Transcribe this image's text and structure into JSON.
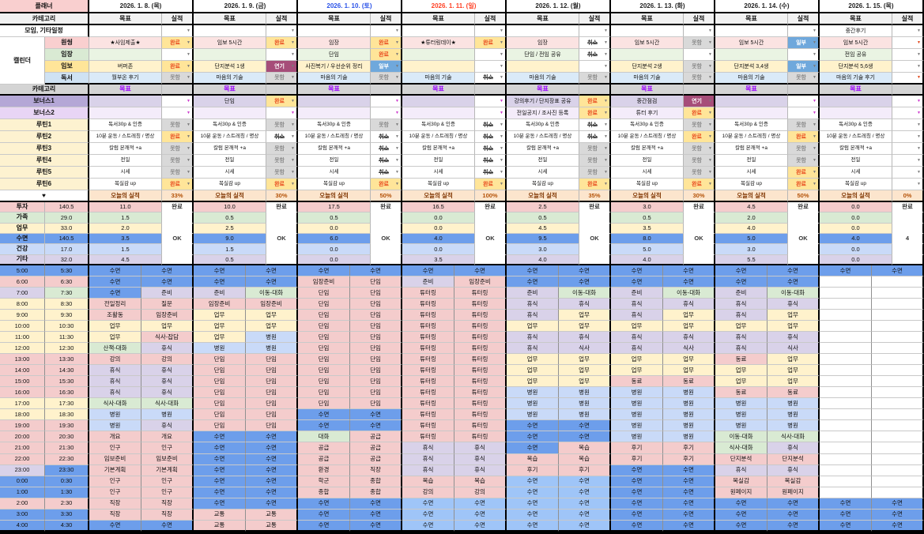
{
  "sheet": {
    "title": "플래너",
    "category_label": "카테고리",
    "goal_label": "목표",
    "result_label": "실적",
    "meeting_label": "모임, 기타일정",
    "calendar_label": "캘린더",
    "calendar_subrows": [
      "원씽",
      "임장",
      "임보",
      "독서"
    ],
    "category2_label": "카테고리",
    "goal2_label": "목표",
    "bonus_labels": [
      "보너스1",
      "보너스2"
    ],
    "routine_labels": [
      "루틴1",
      "루틴2",
      "루틴3",
      "루틴4",
      "루틴5",
      "루틴6"
    ],
    "routine_goals": [
      "독서30p & 인증",
      "10분 운동 / 스트레칭 / 명상",
      "칼럼 본깨적 +a",
      "전일",
      "시세",
      "복실감 up"
    ],
    "heart": "♥",
    "today_label": "오늘의 실적"
  },
  "status_text": {
    "done": "완료",
    "not": "못함",
    "part": "일부",
    "delay": "연기",
    "cancel": "취소"
  },
  "summary": {
    "labels": [
      "투자",
      "가족",
      "업무",
      "수면",
      "건강",
      "기타"
    ],
    "totals": [
      "140.5",
      "29.0",
      "33.0",
      "140.5",
      "17.0",
      "32.0"
    ],
    "row_colors": [
      "P",
      "G",
      "Y",
      "S",
      "H",
      "L"
    ]
  },
  "colors": {
    "P": "#f4cccc",
    "G": "#d9ead3",
    "Y": "#fff2cc",
    "S": "#6d9eeb",
    "SL": "#9fc5f8",
    "H": "#c9daf8",
    "L": "#d9d2e9",
    "W": "#ffffff",
    "date_sat": "#2a52e8",
    "date_sun": "#ff4125",
    "violet": "#9900ff",
    "title_bg": "#f9cfcf",
    "heart_bg": "#fce5cd",
    "cal_label_bg": [
      "#f9cfcf",
      "#d9ead3",
      "#ffe599",
      "#cfe2f3"
    ],
    "cal_goal_bg": [
      "#fbe3e2",
      "#eaf4e3",
      "#fff2cc",
      "#daeaf8"
    ],
    "bonus_label_bg": [
      "#b4a7d6",
      "#e8d5f5"
    ],
    "bonus_goal_bg": [
      "#d9d2e9",
      "#f4ecfa"
    ],
    "routine_label_bg": "#fdf2d0"
  },
  "times": [
    [
      "5:00",
      "5:30",
      "S",
      "S"
    ],
    [
      "6:00",
      "6:30",
      "P",
      "P"
    ],
    [
      "7:00",
      "7:30",
      "L",
      "G"
    ],
    [
      "8:00",
      "8:30",
      "Y",
      "Y"
    ],
    [
      "9:00",
      "9:30",
      "Y",
      "Y"
    ],
    [
      "10:00",
      "10:30",
      "Y",
      "Y"
    ],
    [
      "11:00",
      "11:30",
      "Y",
      "Y"
    ],
    [
      "12:00",
      "12:30",
      "Y",
      "Y"
    ],
    [
      "13:00",
      "13:30",
      "P",
      "P"
    ],
    [
      "14:00",
      "14:30",
      "P",
      "P"
    ],
    [
      "15:00",
      "15:30",
      "P",
      "P"
    ],
    [
      "16:00",
      "16:30",
      "P",
      "P"
    ],
    [
      "17:00",
      "17:30",
      "Y",
      "Y"
    ],
    [
      "18:00",
      "18:30",
      "Y",
      "Y"
    ],
    [
      "19:00",
      "19:30",
      "P",
      "P"
    ],
    [
      "20:00",
      "20:30",
      "P",
      "P"
    ],
    [
      "21:00",
      "21:30",
      "P",
      "P"
    ],
    [
      "22:00",
      "22:30",
      "P",
      "P"
    ],
    [
      "23:00",
      "23:30",
      "L",
      "S"
    ],
    [
      "0:00",
      "0:30",
      "S",
      "S"
    ],
    [
      "1:00",
      "1:30",
      "S",
      "S"
    ],
    [
      "2:00",
      "2:30",
      "P",
      "P"
    ],
    [
      "3:00",
      "3:30",
      "S",
      "S"
    ],
    [
      "4:00",
      "4:30",
      "S",
      "S"
    ]
  ],
  "days": [
    {
      "date": "2026. 1. 8. (목)",
      "date_color": "#222222",
      "meeting": {
        "goal": "",
        "status": ""
      },
      "calendar": [
        {
          "goal": "★사임제출★",
          "status": "done"
        },
        {
          "goal": "",
          "status": ""
        },
        {
          "goal": "버퍼존",
          "status": "done"
        },
        {
          "goal": "월부온 후기",
          "status": "not"
        }
      ],
      "bonus": [
        {
          "goal": "",
          "status": "purple"
        },
        {
          "goal": "",
          "status": "purple"
        }
      ],
      "routine_status": [
        "not",
        "done",
        "not",
        "not",
        "not",
        "done"
      ],
      "today_pct": "33%",
      "summary_values": [
        "11.0",
        "1.5",
        "2.0",
        "3.5",
        "1.5",
        "4.5"
      ],
      "summary_status_top": "완료",
      "summary_status_mid": "OK",
      "schedule": [
        "수면:S|수면:S",
        "수면:S|수면:S",
        "수면:S|준비:L",
        "전일정리:P|질문:P",
        "조활동:P|임장준비:P",
        "업무:Y|업무:Y",
        "업무:Y|식사-잡담:P",
        "산책-대화:G|휴식:L",
        "강의:P|강의:P",
        "휴식:L|휴식:L",
        "휴식:L|휴식:L",
        "휴식:L|휴식:L",
        "식사-대화:G|식사-대화:G",
        "병원:H|병원:H",
        "병원:H|휴식:L",
        "개요:P|개요:P",
        "인구:P|인구:P",
        "임보준비:P|임보준비:P",
        "기본계획:P|기본계획:P",
        "인구:P|인구:P",
        "인구:P|인구:P",
        "직장:P|직장:P",
        "직장:P|직장:P",
        "수면:S|수면:S"
      ]
    },
    {
      "date": "2026. 1. 9. (금)",
      "date_color": "#222222",
      "meeting": {
        "goal": "",
        "status": ""
      },
      "calendar": [
        {
          "goal": "임보 5시간",
          "status": "done"
        },
        {
          "goal": "",
          "status": ""
        },
        {
          "goal": "단지분석 1생",
          "status": "delay"
        },
        {
          "goal": "마음의 기술",
          "status": "not"
        }
      ],
      "bonus": [
        {
          "goal": "단임",
          "status": "done"
        },
        {
          "goal": "",
          "status": "purple"
        }
      ],
      "routine_status": [
        "not",
        "cancel",
        "not",
        "not",
        "not",
        "done"
      ],
      "today_pct": "30%",
      "summary_values": [
        "10.0",
        "0.5",
        "2.5",
        "9.0",
        "1.5",
        "0.5"
      ],
      "summary_status_top": "완료",
      "summary_status_mid": "OK",
      "schedule": [
        "수면:S|수면:S",
        "수면:S|수면:S",
        "준비:L|이동-대화:G",
        "임장준비:P|임장준비:P",
        "업무:Y|업무:Y",
        "업무:Y|업무:Y",
        "업무:Y|병원:H",
        "병원:H|병원:H",
        "단임:P|단임:P",
        "단임:P|단임:P",
        "단임:P|단임:P",
        "단임:P|단임:P",
        "단임:P|단임:P",
        "단임:P|단임:P",
        "단임:P|단임:P",
        "수면:S|수면:S",
        "수면:S|수면:S",
        "수면:S|수면:S",
        "수면:S|수면:S",
        "수면:S|수면:S",
        "수면:S|수면:S",
        "수면:S|수면:S",
        "교통:P|교통:P",
        "교통:P|교통:P"
      ]
    },
    {
      "date": "2026. 1. 10. (토)",
      "date_color": "#2a52e8",
      "meeting": {
        "goal": "",
        "status": ""
      },
      "calendar": [
        {
          "goal": "임장",
          "status": "done"
        },
        {
          "goal": "단임",
          "status": "done"
        },
        {
          "goal": "사진복기 / 우선순위 정리",
          "status": "part"
        },
        {
          "goal": "마음의 기술",
          "status": "not"
        }
      ],
      "bonus": [
        {
          "goal": "",
          "status": "purple"
        },
        {
          "goal": "",
          "status": "purple"
        }
      ],
      "routine_status": [
        "not",
        "cancel",
        "cancel",
        "cancel",
        "cancel",
        "done"
      ],
      "today_pct": "50%",
      "summary_values": [
        "17.5",
        "0.5",
        "0.0",
        "6.0",
        "0.0",
        "0.0"
      ],
      "summary_status_top": "완료",
      "summary_status_mid": "OK",
      "schedule": [
        "수면:S|수면:S",
        "임장준비:P|단임:P",
        "단임:P|단임:P",
        "단임:P|단임:P",
        "단임:P|단임:P",
        "단임:P|단임:P",
        "단임:P|단임:P",
        "단임:P|단임:P",
        "단임:P|단임:P",
        "단임:P|단임:P",
        "단임:P|단임:P",
        "단임:P|단임:P",
        "단임:P|단임:P",
        "수면:S|수면:S",
        "수면:S|수면:S",
        "대화:G|공급:P",
        "공급:P|공급:P",
        "공급:P|공급:P",
        "환경:P|직장:P",
        "학군:P|종합:P",
        "종합:P|종합:P",
        "수면:S|수면:S",
        "수면:S|수면:S",
        "수면:S|수면:S"
      ]
    },
    {
      "date": "2026. 1. 11. (일)",
      "date_color": "#ff4125",
      "meeting": {
        "goal": "",
        "status": ""
      },
      "calendar": [
        {
          "goal": "★튜터링데이★",
          "status": "done"
        },
        {
          "goal": "",
          "status": ""
        },
        {
          "goal": "",
          "status": ""
        },
        {
          "goal": "마음의 기술",
          "status": "cancel"
        }
      ],
      "bonus": [
        {
          "goal": "",
          "status": "purple"
        },
        {
          "goal": "",
          "status": "purple"
        }
      ],
      "routine_status": [
        "cancel",
        "cancel",
        "cancel",
        "cancel",
        "cancel",
        "done"
      ],
      "today_pct": "100%",
      "summary_values": [
        "16.5",
        "0.0",
        "0.0",
        "4.0",
        "0.0",
        "3.5"
      ],
      "summary_status_top": "완료",
      "summary_status_mid": "OK",
      "schedule": [
        "수면:S|수면:S",
        "준비:L|임장준비:P",
        "튜터링:P|튜터링:P",
        "튜터링:P|튜터링:P",
        "튜터링:P|튜터링:P",
        "튜터링:P|튜터링:P",
        "튜터링:P|튜터링:P",
        "튜터링:P|튜터링:P",
        "튜터링:P|튜터링:P",
        "튜터링:P|튜터링:P",
        "튜터링:P|튜터링:P",
        "튜터링:P|튜터링:P",
        "튜터링:P|튜터링:P",
        "튜터링:P|튜터링:P",
        "튜터링:P|튜터링:P",
        "튜터링:P|튜터링:P",
        "휴식:L|휴식:L",
        "휴식:L|휴식:L",
        "휴식:L|휴식:L",
        "복습:P|복습:P",
        "강의:P|강의:P",
        "수면:SL|수면:SL",
        "수면:SL|수면:SL",
        "수면:SL|수면:SL"
      ]
    },
    {
      "date": "2026. 1. 12. (월)",
      "date_color": "#222222",
      "meeting": {
        "goal": "",
        "status": ""
      },
      "calendar": [
        {
          "goal": "임장",
          "status": "cancel"
        },
        {
          "goal": "단임 / 전임 공유",
          "status": "cancel"
        },
        {
          "goal": "",
          "status": ""
        },
        {
          "goal": "마음의 기술",
          "status": "not"
        }
      ],
      "bonus": [
        {
          "goal": "강의후기 / 단지장표 공유",
          "status": "done"
        },
        {
          "goal": "전일공지 / 조사진 등록",
          "status": "done"
        }
      ],
      "routine_status": [
        "cancel",
        "cancel",
        "not",
        "not",
        "not",
        "done"
      ],
      "today_pct": "35%",
      "summary_values": [
        "2.5",
        "0.5",
        "4.5",
        "9.5",
        "3.0",
        "4.0"
      ],
      "summary_status_top": "완료",
      "summary_status_mid": "OK",
      "schedule": [
        "수면:S|수면:S",
        "수면:S|수면:S",
        "준비:L|이동-대화:G",
        "휴식:L|휴식:L",
        "휴식:L|업무:Y",
        "업무:Y|업무:Y",
        "휴식:L|휴식:L",
        "휴식:L|식사:L",
        "업무:Y|업무:Y",
        "업무:Y|업무:Y",
        "업무:Y|업무:Y",
        "병원:H|병원:H",
        "병원:H|병원:H",
        "병원:H|병원:H",
        "수면:S|수면:S",
        "수면:S|수면:S",
        "수면:S|복습:P",
        "복습:P|복습:P",
        "후기:P|후기:P",
        "수면:SL|수면:SL",
        "수면:SL|수면:SL",
        "수면:SL|수면:SL",
        "수면:SL|수면:SL",
        "수면:SL|수면:SL"
      ]
    },
    {
      "date": "2026. 1. 13. (화)",
      "date_color": "#222222",
      "meeting": {
        "goal": "",
        "status": ""
      },
      "calendar": [
        {
          "goal": "임보 5시간",
          "status": "not"
        },
        {
          "goal": "",
          "status": ""
        },
        {
          "goal": "단지분석 2생",
          "status": "not"
        },
        {
          "goal": "마음의 기술",
          "status": "not"
        }
      ],
      "bonus": [
        {
          "goal": "중간점검",
          "status": "delay"
        },
        {
          "goal": "튜터 후기",
          "status": "done"
        }
      ],
      "routine_status": [
        "not",
        "done",
        "not",
        "not",
        "not",
        "done"
      ],
      "today_pct": "30%",
      "summary_values": [
        "3.0",
        "0.5",
        "3.5",
        "8.0",
        "5.0",
        "4.0"
      ],
      "summary_status_top": "완료",
      "summary_status_mid": "OK",
      "schedule": [
        "수면:S|수면:S",
        "수면:S|수면:S",
        "준비:L|이동-대화:G",
        "휴식:L|휴식:L",
        "휴식:L|업무:Y",
        "업무:Y|업무:Y",
        "휴식:L|휴식:L",
        "휴식:L|식사:L",
        "업무:Y|업무:Y",
        "업무:Y|업무:Y",
        "동료:P|동료:P",
        "병원:H|병원:H",
        "병원:H|병원:H",
        "병원:H|병원:H",
        "병원:H|병원:H",
        "병원:H|병원:H",
        "후기:P|후기:P",
        "후기:P|후기:P",
        "수면:S|수면:S",
        "수면:S|수면:S",
        "수면:S|수면:S",
        "수면:S|수면:S",
        "수면:S|수면:S",
        "수면:S|수면:S"
      ]
    },
    {
      "date": "2026. 1. 14. (수)",
      "date_color": "#222222",
      "meeting": {
        "goal": "",
        "status": ""
      },
      "calendar": [
        {
          "goal": "임보 5시간",
          "status": "part"
        },
        {
          "goal": "",
          "status": ""
        },
        {
          "goal": "단지분석 3,4생",
          "status": "part"
        },
        {
          "goal": "마음의 기술",
          "status": "not"
        }
      ],
      "bonus": [
        {
          "goal": "",
          "status": "purple"
        },
        {
          "goal": "",
          "status": "purple"
        }
      ],
      "routine_status": [
        "not",
        "done",
        "not",
        "not",
        "done",
        "done"
      ],
      "today_pct": "50%",
      "summary_values": [
        "4.5",
        "2.0",
        "4.0",
        "5.0",
        "3.0",
        "5.5"
      ],
      "summary_status_top": "완료",
      "summary_status_mid": "OK",
      "schedule": [
        "수면:S|수면:S",
        "수면:S|수면:S",
        "준비:L|이동-대화:G",
        "휴식:L|휴식:L",
        "휴식:L|업무:Y",
        "업무:Y|업무:Y",
        "휴식:L|휴식:L",
        "휴식:L|식사:L",
        "동료:P|업무:Y",
        "업무:Y|업무:Y",
        "업무:Y|업무:Y",
        "동료:P|동료:P",
        "병원:H|병원:H",
        "병원:H|병원:H",
        "병원:H|병원:H",
        "이동-대화:G|식사-대화:G",
        "식사-대화:G|휴식:L",
        "단지분석:P|단지분석:P",
        "휴식:L|휴식:L",
        "복실감:P|복실감:P",
        "원페이지:P|원페이지:P",
        "수면:S|수면:S",
        "수면:S|수면:S",
        "수면:S|수면:S"
      ]
    },
    {
      "date": "2026. 1. 15. (목)",
      "date_color": "#222222",
      "meeting": {
        "goal": "중간후기",
        "status": ""
      },
      "calendar": [
        {
          "goal": "임보 5시간",
          "status": "red"
        },
        {
          "goal": "전임 공유",
          "status": ""
        },
        {
          "goal": "단지분석 5,6생",
          "status": ""
        },
        {
          "goal": "마음의 기술 후기",
          "status": "red"
        }
      ],
      "bonus": [
        {
          "goal": "",
          "status": "purple"
        },
        {
          "goal": "",
          "status": "purple"
        }
      ],
      "routine_status": [
        "",
        "",
        "",
        "",
        "",
        ""
      ],
      "today_pct": "0%",
      "summary_values": [
        "0.0",
        "0.0",
        "0.0",
        "4.0",
        "0.0",
        "0.0"
      ],
      "summary_status_top": "완료",
      "summary_status_mid": "4",
      "schedule": [
        "수면:S|수면:S",
        ":W|:W",
        ":W|:W",
        ":W|:W",
        ":W|:W",
        ":W|:W",
        ":W|:W",
        ":W|:W",
        ":W|:W",
        ":W|:W",
        ":W|:W",
        ":W|:W",
        ":W|:W",
        ":W|:W",
        ":W|:W",
        ":W|:W",
        ":W|:W",
        ":W|:W",
        ":W|:W",
        ":W|:W",
        ":W|:W",
        "수면:S|수면:S",
        "수면:S|수면:S",
        "수면:S|수면:S"
      ]
    }
  ]
}
